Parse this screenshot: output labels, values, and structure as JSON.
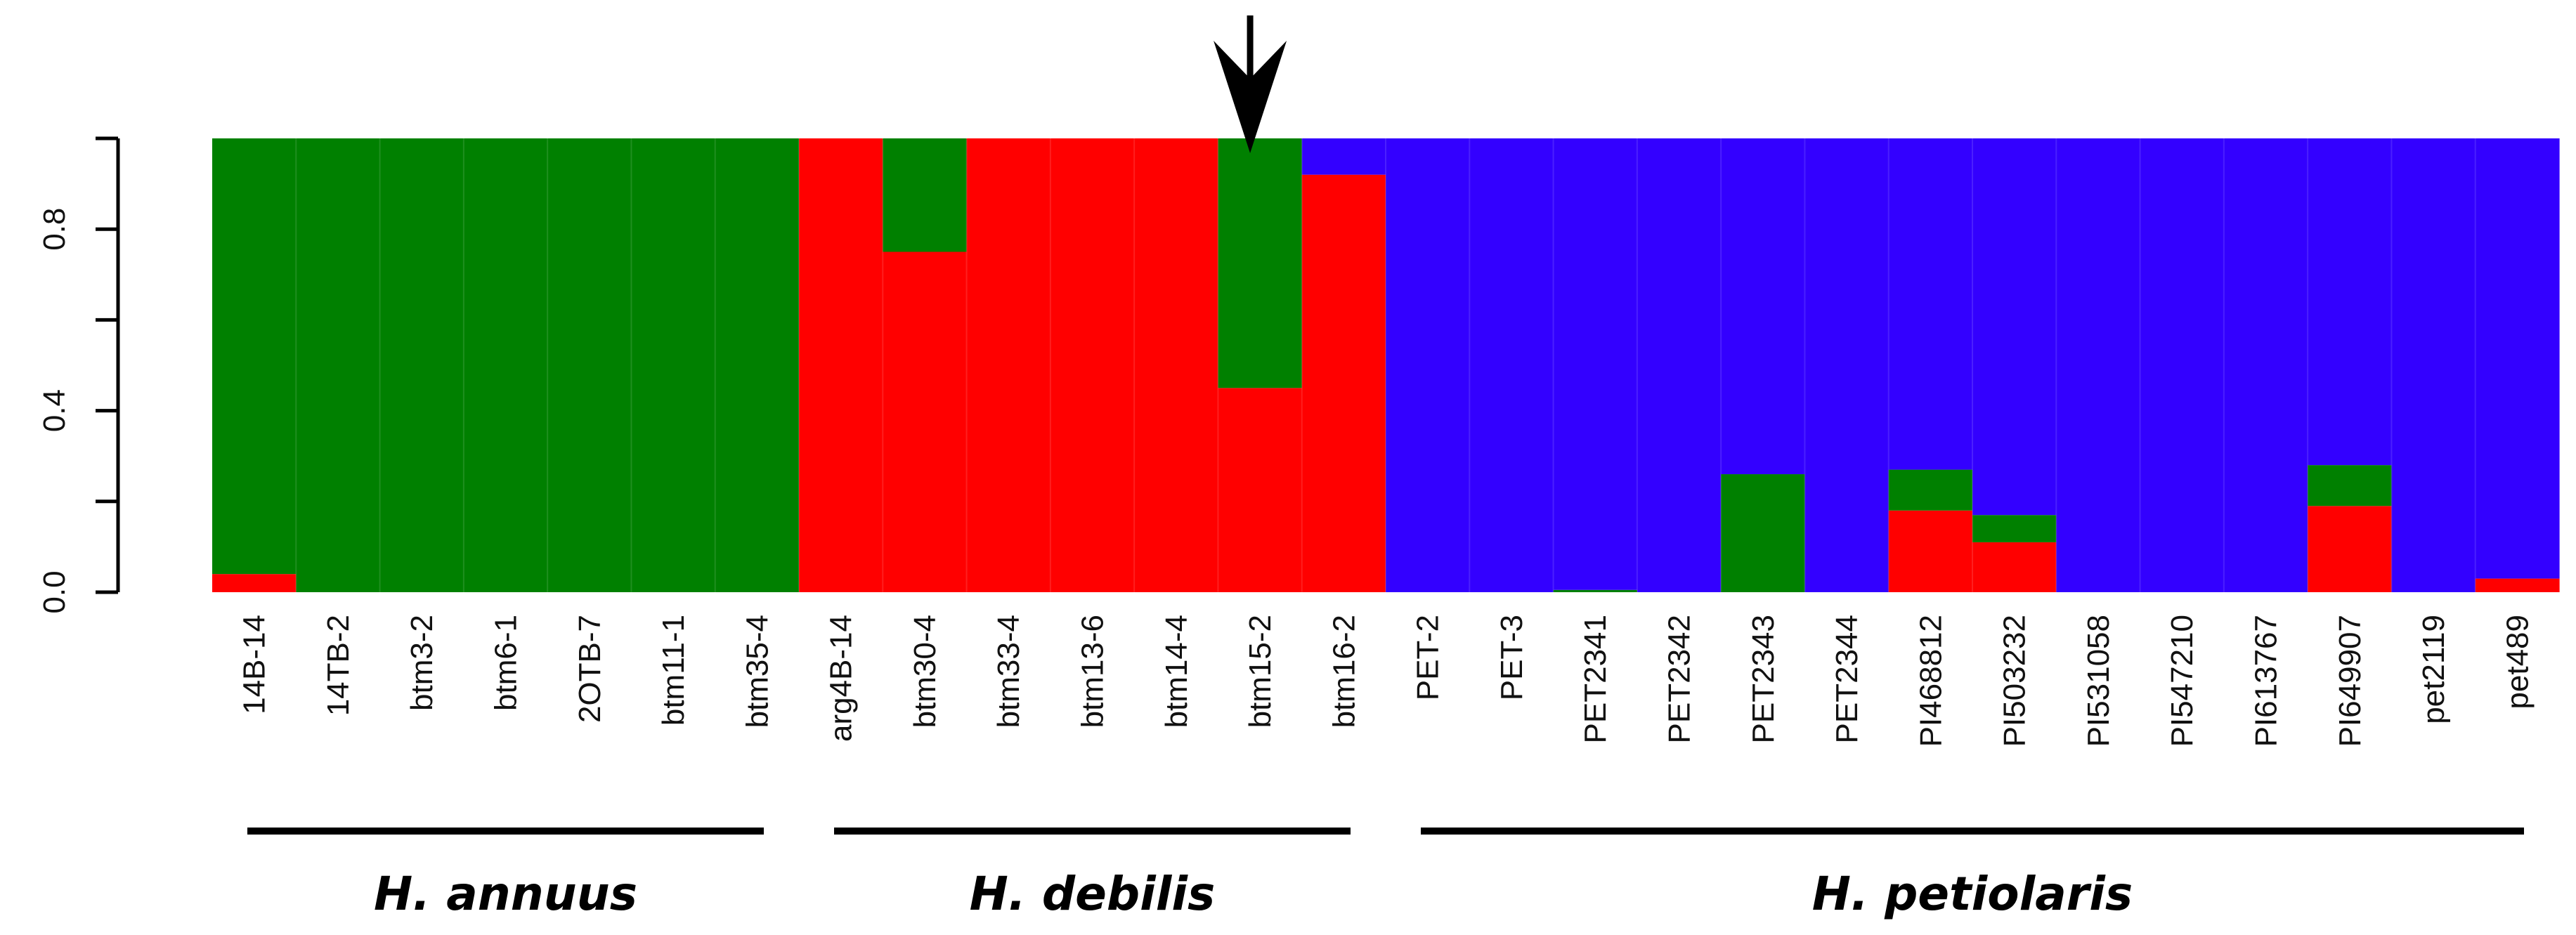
{
  "chart_data": {
    "type": "bar",
    "stacked": true,
    "ylim": [
      0,
      1
    ],
    "yticks": [
      "0.0",
      "0.4",
      "0.8"
    ],
    "ytick_values": [
      0,
      0.4,
      0.8
    ],
    "colors": {
      "red": "#ff0000",
      "green": "#008000",
      "blue": "#3300ff"
    },
    "categories": [
      "14B-14",
      "14TB-2",
      "btm3-2",
      "btm6-1",
      "2OTB-7",
      "btm11-1",
      "btm35-4",
      "arg4B-14",
      "btm30-4",
      "btm33-4",
      "btm13-6",
      "btm14-4",
      "btm15-2",
      "btm16-2",
      "PET-2",
      "PET-3",
      "PET2341",
      "PET2342",
      "PET2343",
      "PET2344",
      "PI468812",
      "PI503232",
      "PI531058",
      "PI547210",
      "PI613767",
      "PI649907",
      "pet2119",
      "pet489"
    ],
    "series": [
      {
        "color": "red",
        "values": [
          0.04,
          0,
          0,
          0,
          0,
          0,
          0,
          1,
          0.75,
          1,
          1,
          1,
          0.45,
          0.92,
          0,
          0,
          0,
          0,
          0,
          0,
          0.18,
          0.11,
          0,
          0,
          0,
          0.19,
          0,
          0.03
        ]
      },
      {
        "color": "green",
        "values": [
          0.96,
          1,
          1,
          1,
          1,
          1,
          1,
          0,
          0.25,
          0,
          0,
          0,
          0.55,
          0,
          0,
          0,
          0.005,
          0,
          0.26,
          0,
          0.09,
          0.06,
          0,
          0,
          0,
          0.09,
          0,
          0
        ]
      },
      {
        "color": "blue",
        "values": [
          0,
          0,
          0,
          0,
          0,
          0,
          0,
          0,
          0,
          0,
          0,
          0,
          0,
          0.08,
          1,
          1,
          0.995,
          1,
          0.74,
          1,
          0.73,
          0.83,
          1,
          1,
          1,
          0.72,
          1,
          0.97
        ]
      }
    ],
    "groups": [
      {
        "label": "H. annuus",
        "start": 0,
        "end": 6
      },
      {
        "label": "H. debilis",
        "start": 7,
        "end": 13
      },
      {
        "label": "H. petiolaris",
        "start": 14,
        "end": 27
      }
    ],
    "arrow_index": 12
  }
}
